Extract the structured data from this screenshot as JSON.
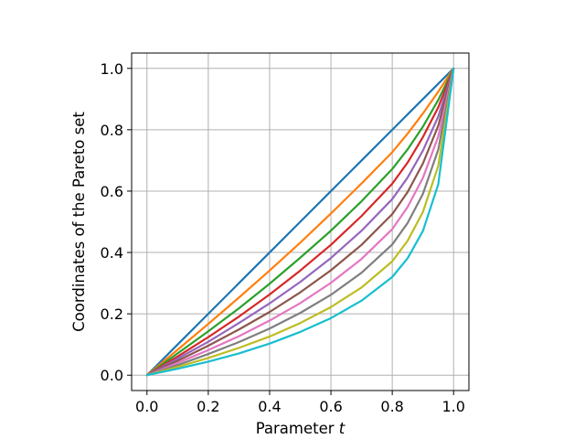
{
  "chart_data": {
    "type": "line",
    "title": "",
    "xlabel": "Parameter ",
    "xlabel_italic": "t",
    "ylabel": "Coordinates of the Pareto set",
    "xlim": [
      -0.05,
      1.05
    ],
    "ylim": [
      -0.05,
      1.05
    ],
    "grid": true,
    "legend": "none",
    "x_ticks": [
      0.0,
      0.2,
      0.4,
      0.6,
      0.8,
      1.0
    ],
    "y_ticks": [
      0.0,
      0.2,
      0.4,
      0.6,
      0.8,
      1.0
    ],
    "x_tick_labels": [
      "0.0",
      "0.2",
      "0.4",
      "0.6",
      "0.8",
      "1.0"
    ],
    "y_tick_labels": [
      "0.0",
      "0.2",
      "0.4",
      "0.6",
      "0.8",
      "1.0"
    ],
    "x": [
      0.0,
      0.1,
      0.2,
      0.3,
      0.4,
      0.5,
      0.6,
      0.7,
      0.8,
      0.85,
      0.9,
      0.95,
      1.0
    ],
    "series": [
      {
        "color": "#1f77b4",
        "values": [
          0.0,
          0.1,
          0.2,
          0.3,
          0.4,
          0.5,
          0.6,
          0.7,
          0.8,
          0.85,
          0.9,
          0.95,
          1.0
        ]
      },
      {
        "color": "#ff7f0e",
        "values": [
          0.0,
          0.083,
          0.167,
          0.253,
          0.341,
          0.432,
          0.527,
          0.625,
          0.727,
          0.787,
          0.853,
          0.924,
          1.0
        ]
      },
      {
        "color": "#2ca02c",
        "values": [
          0.0,
          0.071,
          0.143,
          0.218,
          0.298,
          0.383,
          0.471,
          0.567,
          0.672,
          0.736,
          0.81,
          0.897,
          1.0
        ]
      },
      {
        "color": "#d62728",
        "values": [
          0.0,
          0.061,
          0.124,
          0.191,
          0.263,
          0.341,
          0.425,
          0.519,
          0.624,
          0.693,
          0.776,
          0.873,
          1.0
        ]
      },
      {
        "color": "#9467bd",
        "values": [
          0.0,
          0.054,
          0.109,
          0.17,
          0.234,
          0.304,
          0.382,
          0.471,
          0.574,
          0.644,
          0.732,
          0.843,
          1.0
        ]
      },
      {
        "color": "#8c564b",
        "values": [
          0.0,
          0.047,
          0.096,
          0.149,
          0.206,
          0.27,
          0.342,
          0.425,
          0.525,
          0.597,
          0.69,
          0.813,
          1.0
        ]
      },
      {
        "color": "#e377c2",
        "values": [
          0.0,
          0.04,
          0.082,
          0.127,
          0.178,
          0.235,
          0.301,
          0.379,
          0.476,
          0.548,
          0.643,
          0.778,
          1.0
        ]
      },
      {
        "color": "#7f7f7f",
        "values": [
          0.0,
          0.033,
          0.069,
          0.108,
          0.152,
          0.203,
          0.262,
          0.334,
          0.426,
          0.496,
          0.591,
          0.735,
          1.0
        ]
      },
      {
        "color": "#bcbd22",
        "values": [
          0.0,
          0.027,
          0.056,
          0.089,
          0.126,
          0.17,
          0.222,
          0.286,
          0.371,
          0.438,
          0.532,
          0.682,
          1.0
        ]
      },
      {
        "color": "#17becf",
        "values": [
          0.0,
          0.021,
          0.044,
          0.071,
          0.103,
          0.141,
          0.186,
          0.243,
          0.32,
          0.381,
          0.47,
          0.622,
          1.0
        ]
      }
    ]
  }
}
